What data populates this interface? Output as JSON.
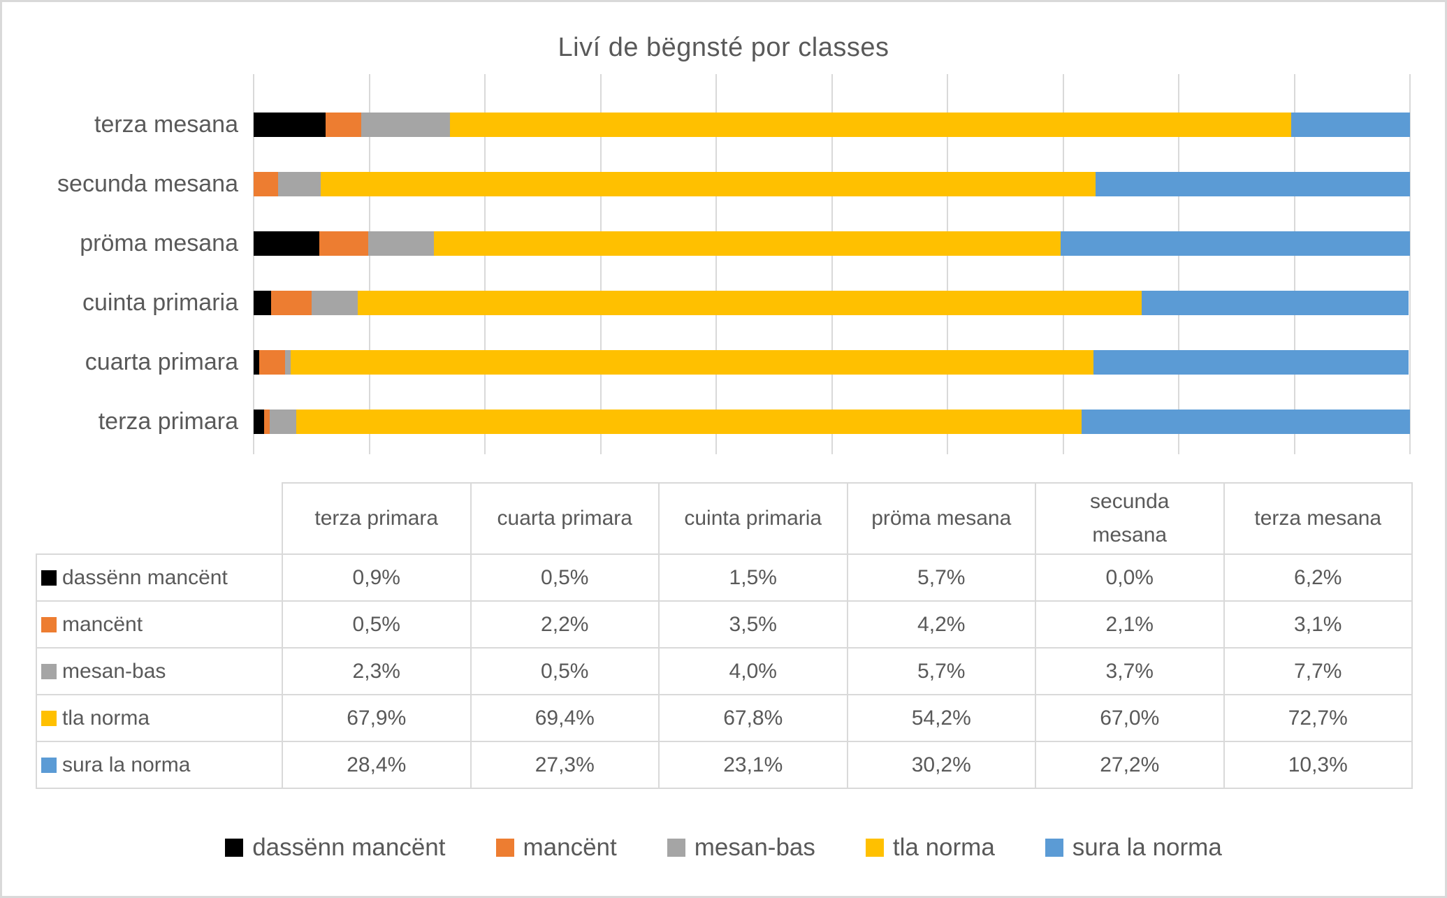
{
  "frame": {
    "background": "#FFFFFF",
    "border_color": "#D9D9D9",
    "text_color": "#595959"
  },
  "chart_data": {
    "type": "bar",
    "stacked": true,
    "horizontal": true,
    "title": "Liví de bëgnsté por classes",
    "categories": [
      "terza primara",
      "cuarta primara",
      "cuinta primaria",
      "pröma mesana",
      "secunda mesana",
      "terza mesana"
    ],
    "display_order_top_to_bottom": [
      "terza mesana",
      "secunda mesana",
      "pröma mesana",
      "cuinta primaria",
      "cuarta primara",
      "terza primara"
    ],
    "series": [
      {
        "name": "dassënn mancënt",
        "color": "#000000",
        "values": [
          0.9,
          0.5,
          1.5,
          5.7,
          0.0,
          6.2
        ]
      },
      {
        "name": "mancënt",
        "color": "#ED7D31",
        "values": [
          0.5,
          2.2,
          3.5,
          4.2,
          2.1,
          3.1
        ]
      },
      {
        "name": "mesan-bas",
        "color": "#A5A5A5",
        "values": [
          2.3,
          0.5,
          4.0,
          5.7,
          3.7,
          7.7
        ]
      },
      {
        "name": "tla norma",
        "color": "#FFC000",
        "values": [
          67.9,
          69.4,
          67.8,
          54.2,
          67.0,
          72.7
        ]
      },
      {
        "name": "sura la norma",
        "color": "#5B9BD5",
        "values": [
          28.4,
          27.3,
          23.1,
          30.2,
          27.2,
          10.3
        ]
      }
    ],
    "x_axis": {
      "min_pct": 0,
      "max_pct": 100,
      "gridline_step_pct": 10,
      "tick_labels_visible": false,
      "gridline_color": "#D9D9D9"
    },
    "grid": true,
    "legend_position": "bottom"
  },
  "table": {
    "column_headers": [
      "terza primara",
      "cuarta primara",
      "cuinta primaria",
      "pröma mesana",
      "secunda mesana",
      "terza mesana"
    ],
    "rows": [
      {
        "label": "dassënn mancënt",
        "color": "#000000",
        "values": [
          "0,9%",
          "0,5%",
          "1,5%",
          "5,7%",
          "0,0%",
          "6,2%"
        ]
      },
      {
        "label": "mancënt",
        "color": "#ED7D31",
        "values": [
          "0,5%",
          "2,2%",
          "3,5%",
          "4,2%",
          "2,1%",
          "3,1%"
        ]
      },
      {
        "label": "mesan-bas",
        "color": "#A5A5A5",
        "values": [
          "2,3%",
          "0,5%",
          "4,0%",
          "5,7%",
          "3,7%",
          "7,7%"
        ]
      },
      {
        "label": "tla norma",
        "color": "#FFC000",
        "values": [
          "67,9%",
          "69,4%",
          "67,8%",
          "54,2%",
          "67,0%",
          "72,7%"
        ]
      },
      {
        "label": "sura la norma",
        "color": "#5B9BD5",
        "values": [
          "28,4%",
          "27,3%",
          "23,1%",
          "30,2%",
          "27,2%",
          "10,3%"
        ]
      }
    ],
    "border_color": "#D9D9D9"
  },
  "legend": {
    "items": [
      {
        "label": "dassënn mancënt",
        "color": "#000000"
      },
      {
        "label": "mancënt",
        "color": "#ED7D31"
      },
      {
        "label": "mesan-bas",
        "color": "#A5A5A5"
      },
      {
        "label": "tla norma",
        "color": "#FFC000"
      },
      {
        "label": "sura la norma",
        "color": "#5B9BD5"
      }
    ]
  }
}
